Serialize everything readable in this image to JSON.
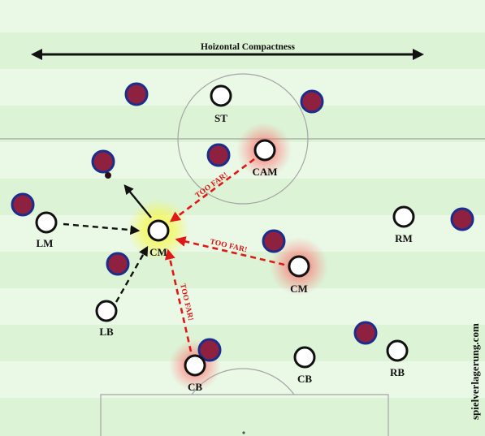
{
  "diagram": {
    "title": "Hoizontal Compactness",
    "watermark": "spielverlagerung.com",
    "warning_label": "TOO FAR!",
    "colors": {
      "stripe_light": "#eaf8e6",
      "stripe_dark": "#dcf3d6",
      "line": "#a0a0a0",
      "team_fill": "#ffffff",
      "team_stroke": "#111111",
      "opp_fill": "#8f2140",
      "opp_stroke": "#1b2e8c",
      "warn_red": "#e01818",
      "highlight_yellow": "#f2f24a",
      "glow_red": "#ff5050"
    },
    "players": [
      {
        "id": "st",
        "label": "ST"
      },
      {
        "id": "cam",
        "label": "CAM"
      },
      {
        "id": "lm",
        "label": "LM"
      },
      {
        "id": "cm-center",
        "label": "CM"
      },
      {
        "id": "rm",
        "label": "RM"
      },
      {
        "id": "cm-right",
        "label": "CM"
      },
      {
        "id": "lb",
        "label": "LB"
      },
      {
        "id": "cb-left",
        "label": "CB"
      },
      {
        "id": "cb-right",
        "label": "CB"
      },
      {
        "id": "rb",
        "label": "RB"
      }
    ]
  }
}
